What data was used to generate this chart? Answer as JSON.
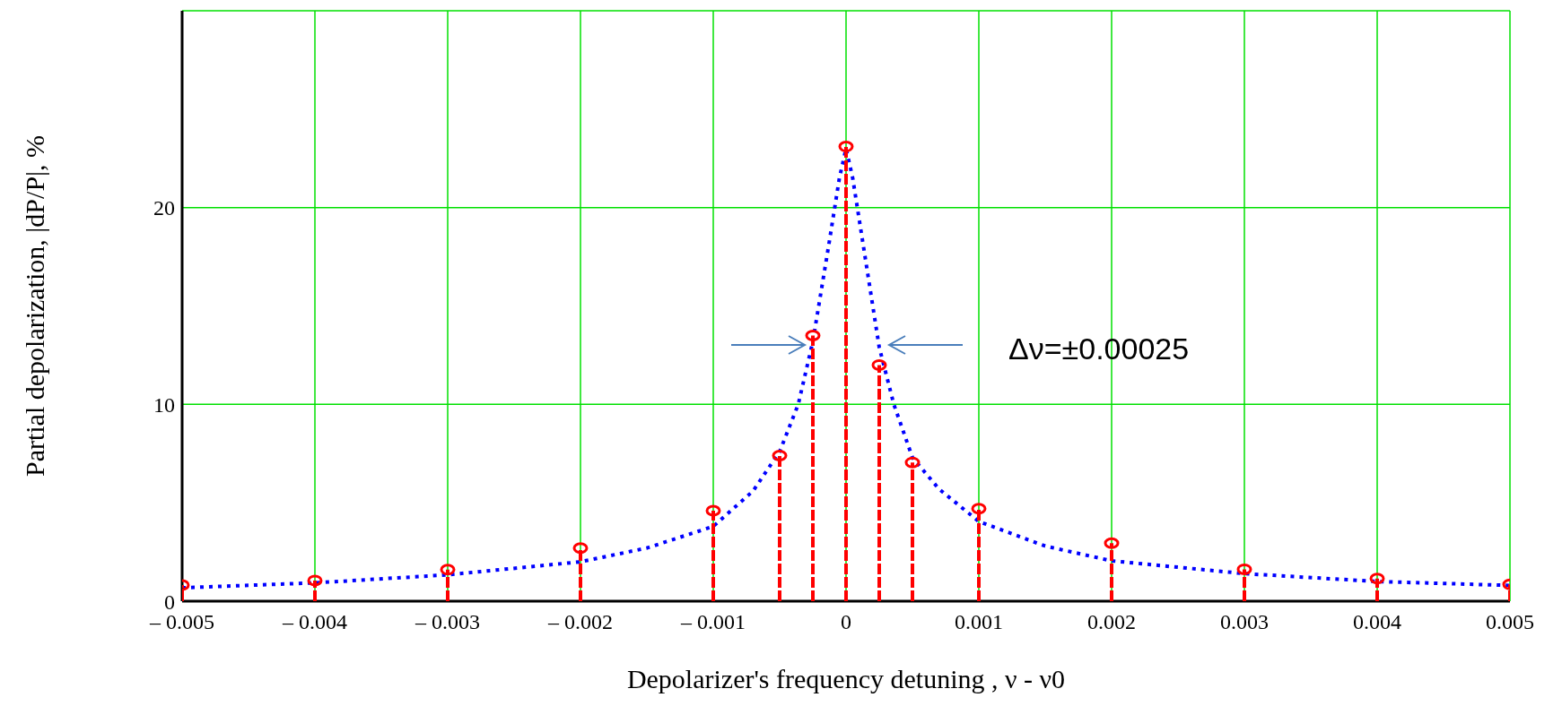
{
  "chart_data": {
    "type": "lollipop",
    "xlabel": "Depolarizer's frequency detuning , ν - ν0",
    "ylabel": "Partial depolarization, |dP/P|, %",
    "xlim": [
      -0.005,
      0.005
    ],
    "xticks": [
      {
        "value": -0.005,
        "label": "– 0.005"
      },
      {
        "value": -0.004,
        "label": "– 0.004"
      },
      {
        "value": -0.003,
        "label": "– 0.003"
      },
      {
        "value": -0.002,
        "label": "– 0.002"
      },
      {
        "value": -0.001,
        "label": "– 0.001"
      },
      0,
      0.001,
      0.002,
      0.003,
      0.004,
      0.005
    ],
    "ylim": [
      0,
      30
    ],
    "yticks": [
      0,
      10,
      20
    ],
    "grid": true,
    "series": [
      {
        "color": "#ff0000",
        "marker": "circle",
        "line_style": "dashed",
        "x": [
          -0.005,
          -0.004,
          -0.003,
          -0.002,
          -0.001,
          -0.0005,
          -0.00025,
          0,
          0.00025,
          0.0005,
          0.001,
          0.002,
          0.003,
          0.004,
          0.005
        ],
        "values": [
          0.82,
          1.05,
          1.6,
          2.7,
          4.6,
          7.4,
          13.5,
          23.1,
          12.0,
          7.05,
          4.7,
          2.95,
          1.62,
          1.15,
          0.85
        ]
      },
      {
        "type": "line",
        "color": "#0000ff",
        "marker": "none",
        "line_style": "dotted",
        "x": [
          -0.005,
          -0.004,
          -0.003,
          -0.002,
          -0.0015,
          -0.001,
          -0.0007,
          -0.0005,
          -0.00036,
          -0.00025,
          -0.00013,
          -5e-05,
          0,
          5e-05,
          0.00012,
          0.00025,
          0.00036,
          0.0005,
          0.0007,
          0.001,
          0.0015,
          0.002,
          0.003,
          0.004,
          0.005
        ],
        "values": [
          0.68,
          0.93,
          1.34,
          2.0,
          2.7,
          3.8,
          5.6,
          7.6,
          10,
          13.2,
          18.1,
          21.5,
          23,
          21.5,
          18.5,
          12.9,
          10,
          7.3,
          5.7,
          4.05,
          2.8,
          2.05,
          1.4,
          1.0,
          0.8
        ]
      }
    ],
    "annotations": [
      "Δν=±0.00025"
    ]
  }
}
